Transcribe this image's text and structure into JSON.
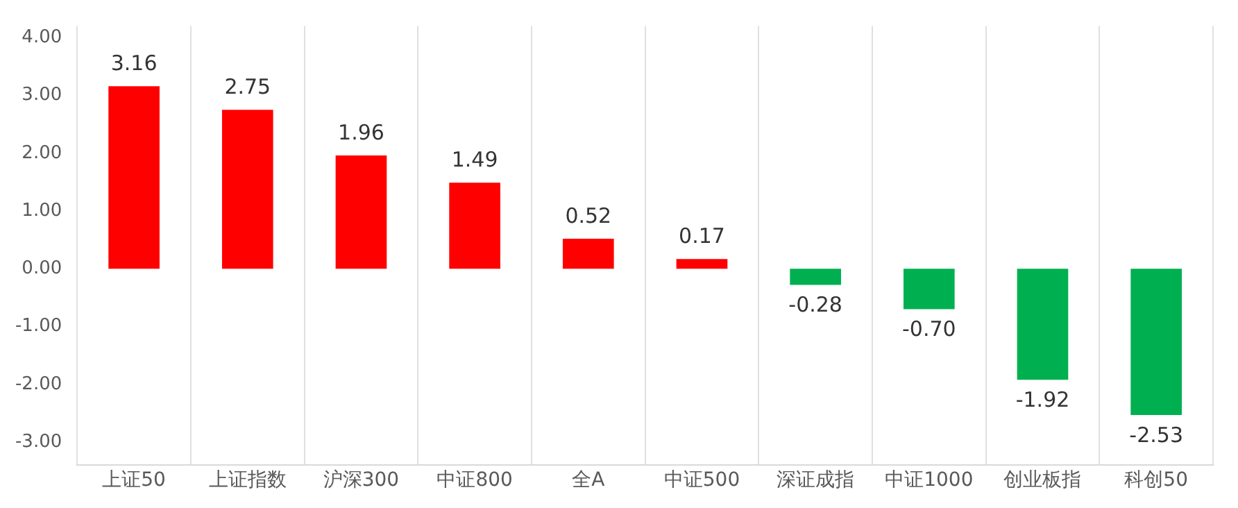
{
  "chart_data": {
    "type": "bar",
    "categories": [
      "上证50",
      "上证指数",
      "沪深300",
      "中证800",
      "全A",
      "中证500",
      "深证成指",
      "中证1000",
      "创业板指",
      "科创50"
    ],
    "values": [
      3.16,
      2.75,
      1.96,
      1.49,
      0.52,
      0.17,
      -0.28,
      -0.7,
      -1.92,
      -2.53
    ],
    "value_labels": [
      "3.16",
      "2.75",
      "1.96",
      "1.49",
      "0.52",
      "0.17",
      "-0.28",
      "-0.70",
      "-1.92",
      "-2.53"
    ],
    "colors": [
      "#ff0000",
      "#ff0000",
      "#ff0000",
      "#ff0000",
      "#ff0000",
      "#ff0000",
      "#00b050",
      "#00b050",
      "#00b050",
      "#00b050"
    ],
    "ylim": [
      -3.4,
      4.2
    ],
    "yticks": [
      {
        "value": -3,
        "label": "-3.00"
      },
      {
        "value": -2,
        "label": "-2.00"
      },
      {
        "value": -1,
        "label": "-1.00"
      },
      {
        "value": 0,
        "label": "0.00"
      },
      {
        "value": 1,
        "label": "1.00"
      },
      {
        "value": 2,
        "label": "2.00"
      },
      {
        "value": 3,
        "label": "3.00"
      },
      {
        "value": 4,
        "label": "4.00"
      }
    ],
    "grid": "x",
    "legend": false
  }
}
